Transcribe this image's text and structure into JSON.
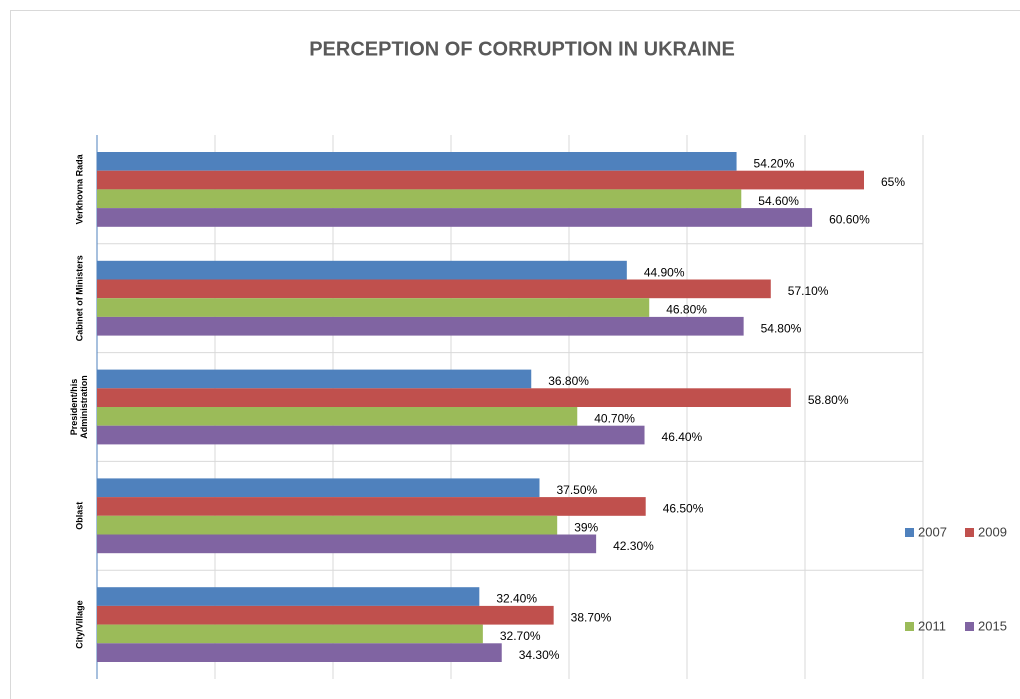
{
  "chart_data": {
    "type": "barh",
    "title": "PERCEPTION OF CORRUPTION  IN UKRAINE",
    "categories": [
      "Verkhovna Rada",
      "Cabinet of Ministers",
      "President/his Administration",
      "Oblast",
      "City/Village"
    ],
    "series": [
      {
        "name": "2007",
        "color": "#4f81bd",
        "values": [
          54.2,
          44.9,
          36.8,
          37.5,
          32.4
        ],
        "value_labels": [
          "54.20%",
          "44.90%",
          "36.80%",
          "37.50%",
          "32.40%"
        ]
      },
      {
        "name": "2009",
        "color": "#c0504d",
        "values": [
          65,
          57.1,
          58.8,
          46.5,
          38.7
        ],
        "value_labels": [
          "65%",
          "57.10%",
          "58.80%",
          "46.50%",
          "38.70%"
        ]
      },
      {
        "name": "2011",
        "color": "#9bbb59",
        "values": [
          54.6,
          46.8,
          40.7,
          39,
          32.7
        ],
        "value_labels": [
          "54.60%",
          "46.80%",
          "40.70%",
          "39%",
          "32.70%"
        ]
      },
      {
        "name": "2015",
        "color": "#8064a2",
        "values": [
          60.6,
          54.8,
          46.4,
          42.3,
          34.3
        ],
        "value_labels": [
          "60.60%",
          "54.80%",
          "46.40%",
          "42.30%",
          "34.30%"
        ]
      }
    ],
    "xlim": [
      0,
      70
    ],
    "xticks": [
      0,
      10,
      20,
      30,
      40,
      50,
      60,
      70
    ],
    "grid": true
  }
}
